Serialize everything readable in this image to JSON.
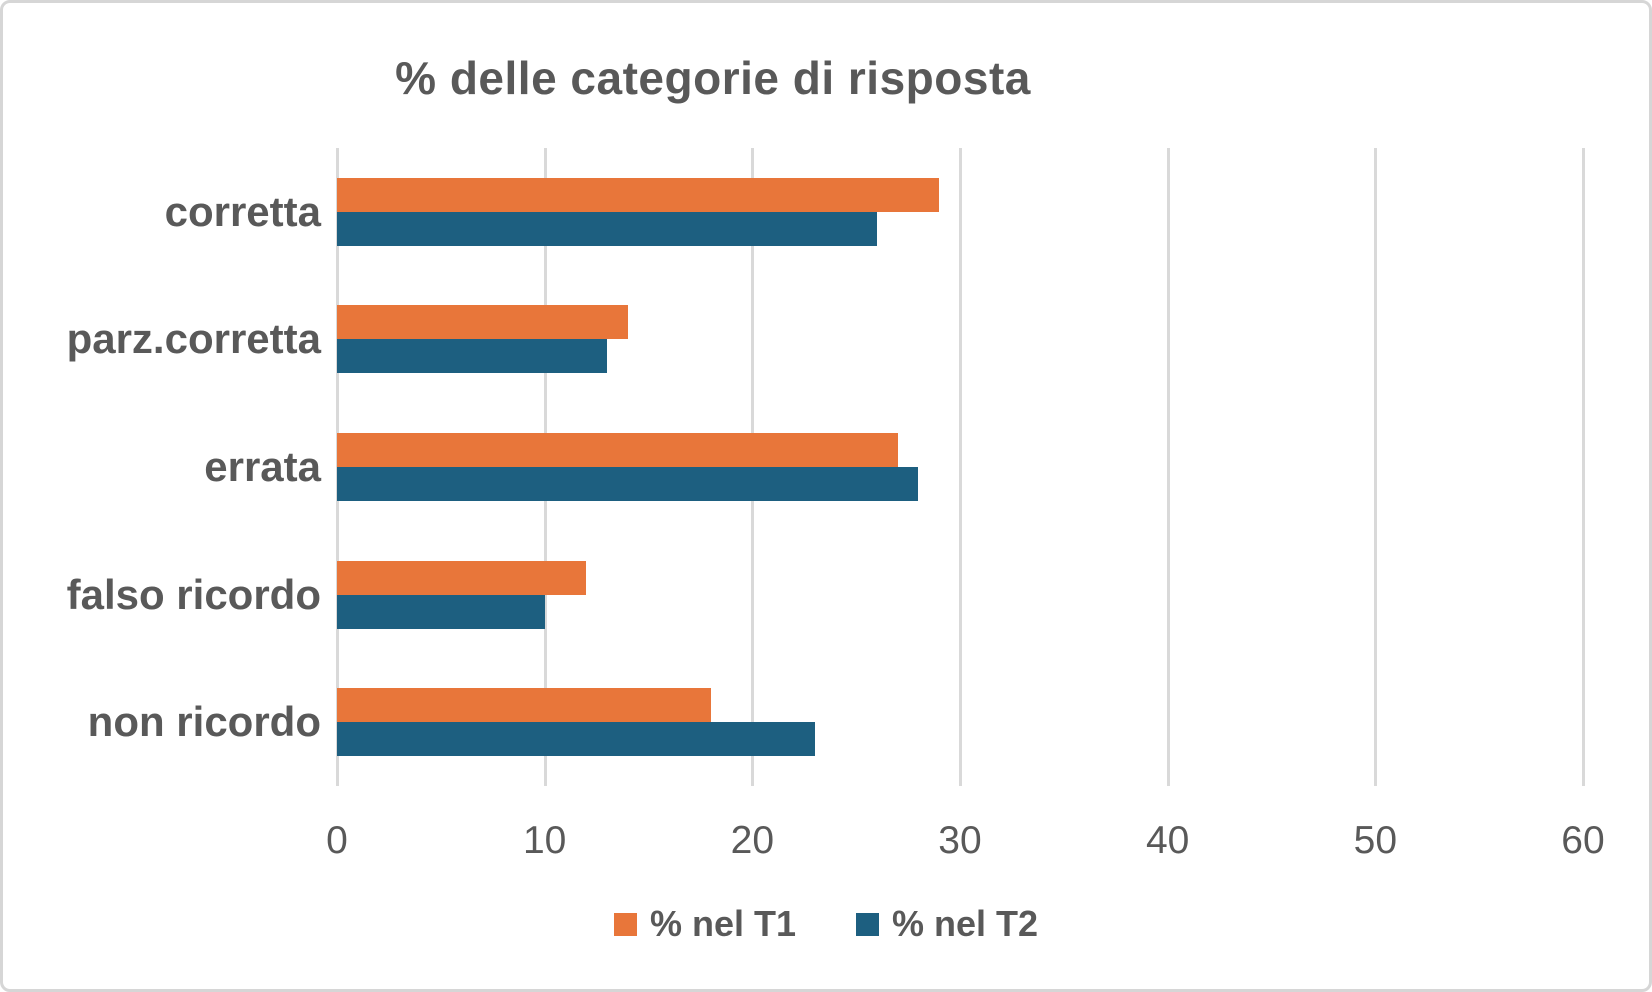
{
  "title": "% delle categorie di risposta",
  "colors": {
    "series1": "#E8763A",
    "series2": "#1D5F80",
    "text": "#595959",
    "gridline": "#D9D9D9"
  },
  "chart_data": {
    "type": "bar",
    "orientation": "horizontal",
    "title": "% delle categorie di risposta",
    "categories": [
      "corretta",
      "parz.corretta",
      "errata",
      "falso ricordo",
      "non ricordo"
    ],
    "series": [
      {
        "name": "% nel T1",
        "color": "#E8763A",
        "values": [
          29,
          14,
          27,
          12,
          18
        ]
      },
      {
        "name": "% nel T2",
        "color": "#1D5F80",
        "values": [
          26,
          13,
          28,
          10,
          23
        ]
      }
    ],
    "x_axis": {
      "min": 0,
      "max": 60,
      "tick_step": 10,
      "tick_labels": [
        "0",
        "10",
        "20",
        "30",
        "40",
        "50",
        "60"
      ]
    },
    "grid": "vertical-only",
    "legend_position": "bottom"
  }
}
